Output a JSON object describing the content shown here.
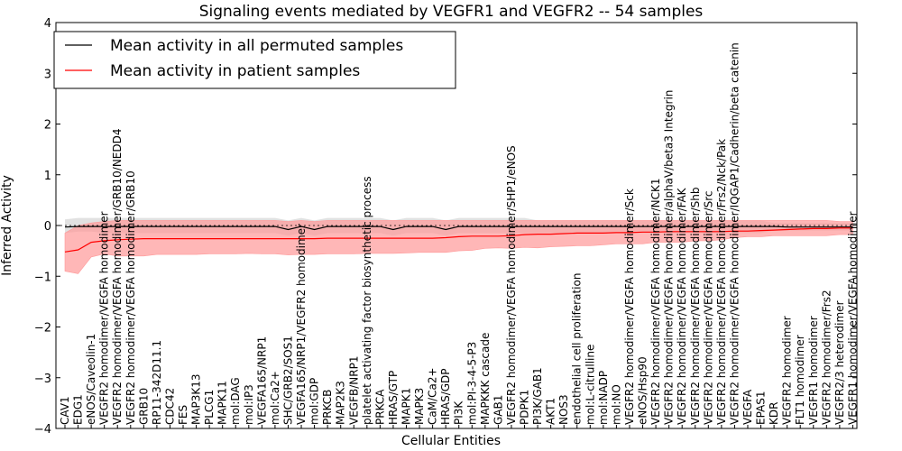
{
  "chart_data": {
    "type": "line",
    "title": "Signaling events mediated by VEGFR1 and VEGFR2 -- 54 samples",
    "xlabel": "Cellular Entities",
    "ylabel": "Inferred Activity",
    "ylim": [
      -4,
      4
    ],
    "yticks": [
      "4",
      "3",
      "2",
      "1",
      "0",
      "−1",
      "−2",
      "−3",
      "−4"
    ],
    "legend_position": "top-left",
    "colors": {
      "permuted": "#000000",
      "patient": "#ff0000",
      "patient_band": "#ff9999",
      "permuted_band": "#c8c8c8"
    },
    "categories": [
      "CAV1",
      "EDG1",
      "eNOS/Caveolin-1",
      "VEGFR2 homodimer/VEGFA homodimer",
      "VEGFR2 homodimer/VEGFA homodimer/GRB10/NEDD4",
      "VEGFR2 homodimer/VEGFA homodimer/GRB10",
      "GRB10",
      "RP11-342D11.1",
      "CDC42",
      "FES",
      "MAP3K13",
      "PLCG1",
      "MAPK11",
      "mol:DAG",
      "mol:IP3",
      "VEGFA165/NRP1",
      "mol:Ca2+",
      "SHC/GRB2/SOS1",
      "VEGFA165/NRP1/VEGFR2 homodimer",
      "mol:GDP",
      "PRKCB",
      "MAP2K3",
      "VEGFB/NRP1",
      "platelet activating factor biosynthetic process",
      "PRKCA",
      "HRAS/GTP",
      "MAPK1",
      "MAPK3",
      "CaM/Ca2+",
      "HRAS/GDP",
      "PI3K",
      "mol:PI-3-4-5-P3",
      "MAPKKK cascade",
      "GAB1",
      "VEGFR2 homodimer/VEGFA homodimer/SHP1/eNOS",
      "PDPK1",
      "PI3K/GAB1",
      "AKT1",
      "NOS3",
      "endothelial cell proliferation",
      "mol:L-citrulline",
      "mol:NADP",
      "mol:NO",
      "VEGFR2 homodimer/VEGFA homodimer/Sck",
      "eNOS/Hsp90",
      "VEGFR2 homodimer/VEGFA homodimer/NCK1",
      "VEGFR2 homodimer/VEGFA homodimer/alphaV/beta3 Integrin",
      "VEGFR2 homodimer/VEGFA homodimer/FAK",
      "VEGFR2 homodimer/VEGFA homodimer/Shb",
      "VEGFR2 homodimer/VEGFA homodimer/Src",
      "VEGFR2 homodimer/VEGFA homodimer/Frs2/Nck/Pak",
      "VEGFR2 homodimer/VEGFA homodimer/IQGAP1/Cadherin/beta catenin",
      "VEGFA",
      "EPAS1",
      "KDR",
      "VEGFR2 homodimer",
      "FLT1 homodimer",
      "VEGFR1 homodimer",
      "VEGFR2 homodimer/Frs2",
      "VEGFR2/3 heterodimer",
      "VEGFR1 homodimer/VEGFA homodimer"
    ],
    "series": [
      {
        "name": "Mean activity in all permuted samples",
        "values": [
          -0.03,
          -0.02,
          -0.02,
          -0.02,
          -0.02,
          -0.02,
          -0.02,
          -0.02,
          -0.02,
          -0.02,
          -0.02,
          -0.02,
          -0.02,
          -0.02,
          -0.02,
          -0.02,
          -0.02,
          -0.08,
          -0.02,
          -0.08,
          -0.02,
          -0.02,
          -0.02,
          -0.02,
          -0.02,
          -0.08,
          -0.02,
          -0.02,
          -0.02,
          -0.08,
          -0.02,
          -0.02,
          -0.02,
          -0.02,
          -0.02,
          -0.02,
          -0.02,
          -0.02,
          -0.02,
          -0.02,
          -0.02,
          -0.02,
          -0.02,
          -0.02,
          -0.02,
          -0.02,
          -0.02,
          -0.02,
          -0.02,
          -0.02,
          -0.02,
          -0.02,
          -0.02,
          -0.02,
          -0.02,
          -0.03,
          -0.03,
          -0.03,
          -0.03,
          -0.03,
          -0.03
        ],
        "lower": [
          -0.15,
          -0.12,
          -0.12,
          -0.15,
          -0.15,
          -0.15,
          -0.15,
          -0.15,
          -0.15,
          -0.15,
          -0.15,
          -0.15,
          -0.15,
          -0.15,
          -0.15,
          -0.15,
          -0.15,
          -0.2,
          -0.15,
          -0.2,
          -0.15,
          -0.15,
          -0.15,
          -0.15,
          -0.15,
          -0.2,
          -0.15,
          -0.15,
          -0.15,
          -0.2,
          -0.15,
          -0.15,
          -0.15,
          -0.15,
          -0.15,
          -0.15,
          -0.15,
          -0.15,
          -0.15,
          -0.15,
          -0.15,
          -0.15,
          -0.15,
          -0.15,
          -0.15,
          -0.15,
          -0.15,
          -0.15,
          -0.15,
          -0.15,
          -0.15,
          -0.15,
          -0.15,
          -0.15,
          -0.1,
          -0.1,
          -0.1,
          -0.1,
          -0.1,
          -0.1,
          -0.1
        ],
        "upper": [
          0.12,
          0.15,
          0.15,
          0.15,
          0.15,
          0.15,
          0.15,
          0.15,
          0.15,
          0.15,
          0.15,
          0.15,
          0.15,
          0.15,
          0.15,
          0.15,
          0.15,
          0.1,
          0.15,
          0.1,
          0.15,
          0.15,
          0.15,
          0.15,
          0.15,
          0.1,
          0.15,
          0.15,
          0.15,
          0.1,
          0.15,
          0.15,
          0.15,
          0.15,
          0.15,
          0.15,
          0.1,
          0.1,
          0.1,
          0.1,
          0.1,
          0.1,
          0.1,
          0.1,
          0.1,
          0.1,
          0.1,
          0.1,
          0.1,
          0.1,
          0.1,
          0.1,
          0.1,
          0.1,
          0.05,
          0.05,
          0.05,
          0.05,
          0.05,
          0.05,
          0.05
        ]
      },
      {
        "name": "Mean activity in patient samples",
        "values": [
          -0.52,
          -0.48,
          -0.33,
          -0.3,
          -0.28,
          -0.27,
          -0.26,
          -0.26,
          -0.26,
          -0.26,
          -0.26,
          -0.26,
          -0.26,
          -0.26,
          -0.26,
          -0.26,
          -0.26,
          -0.26,
          -0.26,
          -0.26,
          -0.25,
          -0.25,
          -0.25,
          -0.25,
          -0.25,
          -0.25,
          -0.25,
          -0.25,
          -0.25,
          -0.24,
          -0.22,
          -0.21,
          -0.21,
          -0.21,
          -0.2,
          -0.18,
          -0.17,
          -0.17,
          -0.16,
          -0.15,
          -0.15,
          -0.15,
          -0.14,
          -0.14,
          -0.13,
          -0.13,
          -0.12,
          -0.12,
          -0.12,
          -0.12,
          -0.12,
          -0.11,
          -0.11,
          -0.1,
          -0.09,
          -0.08,
          -0.07,
          -0.06,
          -0.06,
          -0.05,
          -0.05
        ],
        "lower": [
          -0.9,
          -0.95,
          -0.62,
          -0.56,
          -0.6,
          -0.6,
          -0.6,
          -0.57,
          -0.57,
          -0.57,
          -0.57,
          -0.56,
          -0.56,
          -0.56,
          -0.55,
          -0.56,
          -0.56,
          -0.58,
          -0.57,
          -0.57,
          -0.56,
          -0.56,
          -0.56,
          -0.55,
          -0.55,
          -0.55,
          -0.54,
          -0.53,
          -0.53,
          -0.53,
          -0.5,
          -0.49,
          -0.45,
          -0.44,
          -0.45,
          -0.43,
          -0.44,
          -0.42,
          -0.41,
          -0.4,
          -0.4,
          -0.38,
          -0.36,
          -0.36,
          -0.36,
          -0.33,
          -0.33,
          -0.33,
          -0.3,
          -0.3,
          -0.28,
          -0.24,
          -0.22,
          -0.22,
          -0.2,
          -0.2,
          -0.2,
          -0.2,
          -0.2,
          -0.18,
          -0.18
        ],
        "upper": [
          -0.15,
          0.0,
          0.05,
          0.08,
          0.1,
          0.1,
          0.1,
          0.1,
          0.1,
          0.1,
          0.1,
          0.1,
          0.1,
          0.1,
          0.1,
          0.1,
          0.1,
          0.08,
          0.1,
          0.08,
          0.1,
          0.1,
          0.1,
          0.1,
          0.1,
          0.1,
          0.1,
          0.1,
          0.1,
          0.1,
          0.1,
          0.1,
          0.1,
          0.1,
          0.1,
          0.1,
          0.1,
          0.1,
          0.1,
          0.1,
          0.1,
          0.1,
          0.1,
          0.1,
          0.1,
          0.1,
          0.1,
          0.1,
          0.1,
          0.1,
          0.1,
          0.1,
          0.1,
          0.1,
          0.1,
          0.1,
          0.1,
          0.1,
          0.1,
          0.08,
          0.08
        ]
      }
    ]
  }
}
